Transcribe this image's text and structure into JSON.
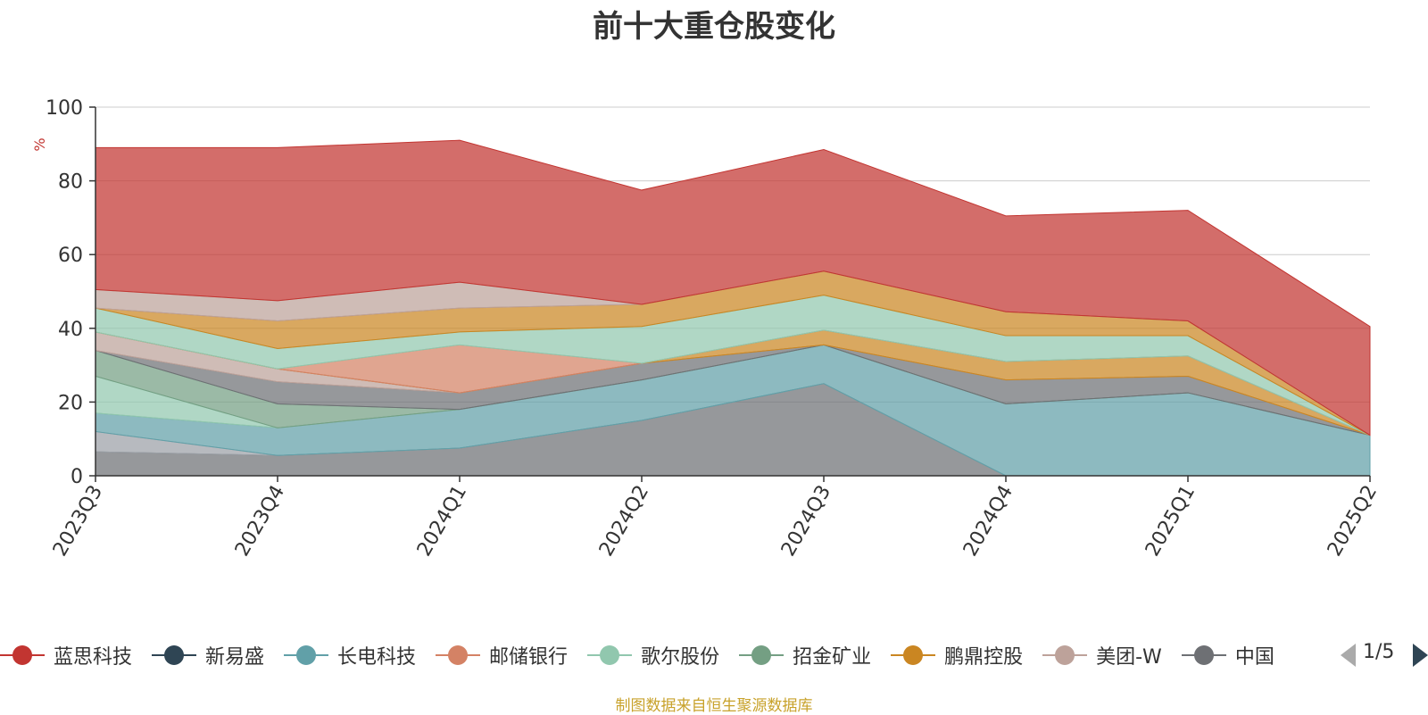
{
  "title": "前十大重仓股变化",
  "source_note": "制图数据来自恒生聚源数据库",
  "legend_pager": "1/5",
  "chart_data": {
    "type": "area",
    "stacked": true,
    "title": "前十大重仓股变化",
    "ylabel": "%",
    "ylim": [
      0,
      100
    ],
    "yticks": [
      0,
      20,
      40,
      60,
      80,
      100
    ],
    "grid": true,
    "legend_position": "bottom",
    "x": [
      "2023Q3",
      "2023Q4",
      "2024Q1",
      "2024Q2",
      "2024Q3",
      "2024Q4",
      "2025Q1",
      "2025Q2"
    ],
    "series": [
      {
        "name": "",
        "color": "#6e7074",
        "values": [
          6.5,
          5.5,
          7.5,
          15,
          25,
          0,
          0,
          0
        ]
      },
      {
        "name": "",
        "color": "#9ba0a6",
        "values": [
          5.5,
          0,
          0,
          0,
          0,
          0,
          0,
          0
        ]
      },
      {
        "name": "",
        "color": "#61a0a8",
        "values": [
          5,
          7.5,
          10.5,
          11,
          10.5,
          19.5,
          22.5,
          11
        ]
      },
      {
        "name": "",
        "color": "#91c7ae",
        "values": [
          10,
          0,
          0,
          0,
          0,
          0,
          0,
          0
        ]
      },
      {
        "name": "",
        "color": "#749f83",
        "values": [
          7,
          6.5,
          0,
          0,
          0,
          0,
          0,
          0
        ]
      },
      {
        "name": "",
        "color": "#6e7074",
        "values": [
          0,
          6,
          4.5,
          4.5,
          0,
          6.5,
          4.5,
          0
        ]
      },
      {
        "name": "",
        "color": "#bda29a",
        "values": [
          5,
          3.5,
          0,
          0,
          0,
          0,
          0,
          0
        ]
      },
      {
        "name": "",
        "color": "#ca8622",
        "values": [
          0,
          0,
          0,
          0,
          4,
          5,
          5.5,
          0
        ]
      },
      {
        "name": "",
        "color": "#d48265",
        "values": [
          0,
          0,
          13,
          0,
          0,
          0,
          0,
          0
        ]
      },
      {
        "name": "",
        "color": "#91c7ae",
        "values": [
          6.5,
          5.5,
          3.5,
          10,
          9.5,
          7,
          5.5,
          0
        ]
      },
      {
        "name": "",
        "color": "#ca8622",
        "values": [
          0,
          7.5,
          6.5,
          6,
          6.5,
          6.5,
          4,
          0
        ]
      },
      {
        "name": "",
        "color": "#bda29a",
        "values": [
          5,
          5.5,
          7,
          0,
          0,
          0,
          0,
          0
        ]
      },
      {
        "name": "蓝思科技",
        "color": "#c23531",
        "values": [
          38.5,
          41.5,
          38.5,
          31,
          33,
          26,
          30,
          29.5
        ]
      }
    ],
    "legend": [
      {
        "name": "蓝思科技",
        "color": "#c23531"
      },
      {
        "name": "新易盛",
        "color": "#2f4554"
      },
      {
        "name": "长电科技",
        "color": "#61a0a8"
      },
      {
        "name": "邮储银行",
        "color": "#d48265"
      },
      {
        "name": "歌尔股份",
        "color": "#91c7ae"
      },
      {
        "name": "招金矿业",
        "color": "#749f83"
      },
      {
        "name": "鹏鼎控股",
        "color": "#ca8622"
      },
      {
        "name": "美团-W",
        "color": "#bda29a"
      },
      {
        "name": "中国",
        "color": "#6e7074"
      }
    ]
  }
}
